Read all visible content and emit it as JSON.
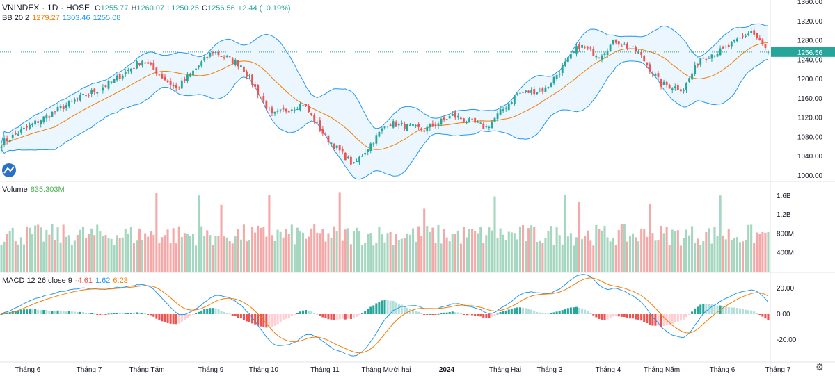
{
  "header": {
    "symbol": "VNINDEX",
    "interval": "1D",
    "exchange": "HOSE",
    "o_label": "O",
    "o_value": "1255.77",
    "h_label": "H",
    "h_value": "1260.07",
    "l_label": "L",
    "l_value": "1250.25",
    "c_label": "C",
    "c_value": "1256.56",
    "change": "+2.44 (+0.19%)"
  },
  "bb_legend": {
    "name": "BB 20 2",
    "basis": "1279.27",
    "upper": "1303.46",
    "lower": "1255.08"
  },
  "volume_legend": {
    "name": "Volume",
    "value": "835.303M"
  },
  "macd_legend": {
    "name": "MACD 12 26 close 9",
    "hist": "-4.61",
    "macd": "1.62",
    "signal": "6.23"
  },
  "price_label": "1256.56",
  "colors": {
    "up": "#26a69a",
    "down": "#ef5350",
    "basis": "#f57c00",
    "band": "#2196f3",
    "band_fill": "#e3f2fd",
    "vol_up": "#a5d6bf",
    "vol_down": "#f4a9a8"
  },
  "chart_data": [
    {
      "type": "candlestick",
      "title": "VNINDEX 1D HOSE",
      "y_ticks": [
        "1360.00",
        "1320.00",
        "1280.00",
        "1240.00",
        "1200.00",
        "1160.00",
        "1120.00",
        "1080.00",
        "1040.00",
        "1000.00"
      ],
      "ylim": [
        1000,
        1360
      ],
      "x_ticks": [
        "Tháng 6",
        "Tháng 7",
        "Tháng Tám",
        "Tháng 9",
        "Tháng 10",
        "Tháng 11",
        "Tháng Mười hai",
        "2024",
        "Tháng Hai",
        "Tháng 3",
        "Tháng 4",
        "Tháng Năm",
        "Tháng 6",
        "Tháng 7"
      ],
      "anchors": {
        "x": [
          0,
          12,
          24,
          38,
          50,
          62,
          75,
          85,
          96,
          107,
          115,
          125,
          137,
          150,
          160,
          172,
          183,
          193,
          199,
          205,
          212,
          218,
          226,
          234,
          242,
          248,
          256,
          266,
          272
        ],
        "close": [
          1068,
          1110,
          1150,
          1190,
          1240,
          1180,
          1258,
          1230,
          1125,
          1150,
          1080,
          1022,
          1110,
          1095,
          1125,
          1100,
          1170,
          1180,
          1225,
          1270,
          1250,
          1280,
          1255,
          1190,
          1180,
          1245,
          1260,
          1300,
          1256
        ]
      },
      "bb": {
        "period": 20,
        "mult": 2,
        "basis": 1279.27,
        "upper": 1303.46,
        "lower": 1255.08
      },
      "last": {
        "open": 1255.77,
        "high": 1260.07,
        "low": 1250.25,
        "close": 1256.56
      }
    },
    {
      "type": "bar",
      "title": "Volume",
      "y_ticks": [
        "1.6B",
        "1.2B",
        "800M",
        "400M"
      ],
      "last_value": "835.303M"
    },
    {
      "type": "line+histogram",
      "title": "MACD 12 26 close 9",
      "y_ticks": [
        "20.00",
        "0.00",
        "-20.00"
      ],
      "last": {
        "histogram": -4.61,
        "macd": 1.62,
        "signal": 6.23
      }
    }
  ]
}
